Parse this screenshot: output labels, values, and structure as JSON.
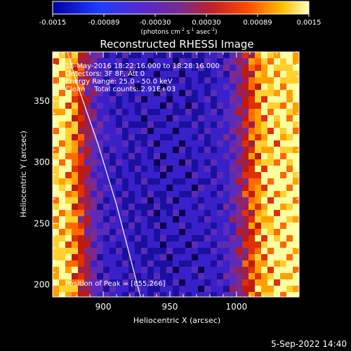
{
  "colorbar": {
    "ticks": [
      "-0.0015",
      "-0.00089",
      "-0.00030",
      "0.00030",
      "0.00089",
      "0.0015"
    ],
    "units_text": "(photons cm",
    "units_exp1": "-2",
    "units_mid": " s",
    "units_exp2": "-1",
    "units_mid2": " asec",
    "units_exp3": "-2",
    "units_close": ")"
  },
  "chart_data": {
    "type": "heatmap",
    "title": "Reconstructed RHESSI Image",
    "xlabel": "Heliocentric X (arcsec)",
    "ylabel": "Heliocentric Y (arcsec)",
    "xlim": [
      862,
      1047
    ],
    "ylim": [
      190,
      390
    ],
    "x_ticks": [
      900,
      950,
      1000
    ],
    "y_ticks": [
      200,
      250,
      300,
      350
    ],
    "x_tick_labels": [
      "900",
      "950",
      "1000"
    ],
    "y_tick_labels": [
      "200",
      "250",
      "300",
      "350"
    ],
    "color_range": [
      -0.0015,
      0.0015
    ],
    "info_lines": [
      "15-May-2016 18:22:16.000 to 18:28:16.000",
      "Detectors: 3F 8F, Att 0",
      "Energy Range: 25.0 - 50.0 keV",
      "Clean    Total counts: 2.91E+03"
    ],
    "peak_label": "Position of Peak = [855,266]",
    "peak_position": [
      855,
      266
    ],
    "limb_curve": {
      "x": [
        873,
        880,
        888,
        896,
        903,
        910,
        916,
        922,
        928
      ],
      "y": [
        390,
        365,
        340,
        315,
        290,
        265,
        240,
        215,
        190
      ]
    }
  },
  "footer": {
    "timestamp": "5-Sep-2022 14:40"
  }
}
